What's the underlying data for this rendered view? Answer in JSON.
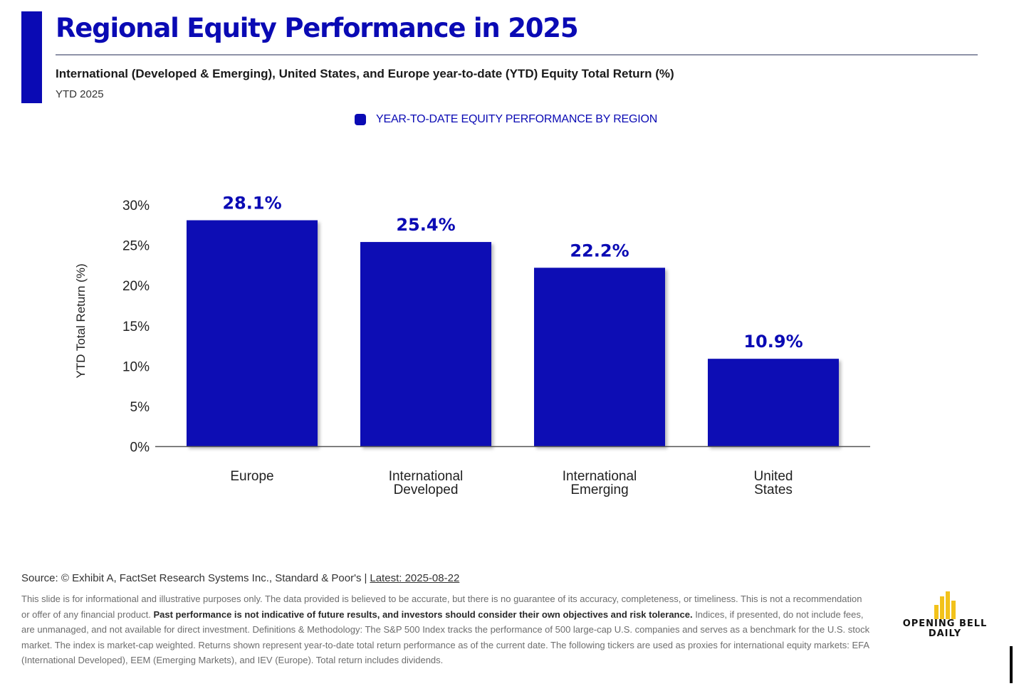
{
  "header": {
    "title": "Regional Equity Performance in 2025",
    "subtitle": "International (Developed & Emerging), United States, and Europe year-to-date (YTD) Equity Total Return (%)",
    "period": "YTD 2025"
  },
  "legend": {
    "label": "YEAR-TO-DATE EQUITY PERFORMANCE BY REGION"
  },
  "chart_data": {
    "type": "bar",
    "categories": [
      [
        "Europe"
      ],
      [
        "International",
        "Developed"
      ],
      [
        "International",
        "Emerging"
      ],
      [
        "United",
        "States"
      ]
    ],
    "series": [
      {
        "name": "YEAR-TO-DATE EQUITY PERFORMANCE BY REGION",
        "values": [
          28.1,
          25.4,
          22.2,
          10.9
        ]
      }
    ],
    "value_labels": [
      "28.1%",
      "25.4%",
      "22.2%",
      "10.9%"
    ],
    "ylabel": "YTD Total Return (%)",
    "ylim": [
      0,
      30
    ],
    "yticks": [
      0,
      5,
      10,
      15,
      20,
      25,
      30
    ],
    "ytick_labels": [
      "0%",
      "5%",
      "10%",
      "15%",
      "20%",
      "25%",
      "30%"
    ],
    "grid": false,
    "legend_position": "top-center",
    "colors": {
      "bar": "#0a0ab4",
      "value_label": "#0a0ab4",
      "axis": "#555555"
    }
  },
  "footer": {
    "source_label": "Source: © Exhibit A, FactSet Research Systems Inc., Standard & Poor's",
    "separator": "|",
    "latest": "Latest: 2025-08-22",
    "disclaimer_part1": "This slide is for informational and illustrative purposes only. The data provided is believed to be accurate, but there is no guarantee of its accuracy, completeness, or timeliness. This is not a recommendation or offer of any financial product. ",
    "disclaimer_bold": "Past performance is not indicative of future results, and investors should consider their own objectives and risk tolerance.",
    "disclaimer_part2": " Indices, if presented, do not include fees, are unmanaged, and not available for direct investment. Definitions & Methodology: The S&P 500 Index tracks the performance of 500 large-cap U.S. companies and serves as a benchmark for the U.S. stock market. The index is market-cap weighted. Returns shown represent year-to-date total return performance as of the current date. The following tickers are used as proxies for international equity markets: EFA (International Developed), EEM (Emerging Markets), and IEV (Europe). Total return includes dividends."
  },
  "logo": {
    "line1": "OPENING BELL",
    "line2": "DAILY",
    "icon": "bar-chart-logo-icon",
    "color": "#f2c21b"
  }
}
